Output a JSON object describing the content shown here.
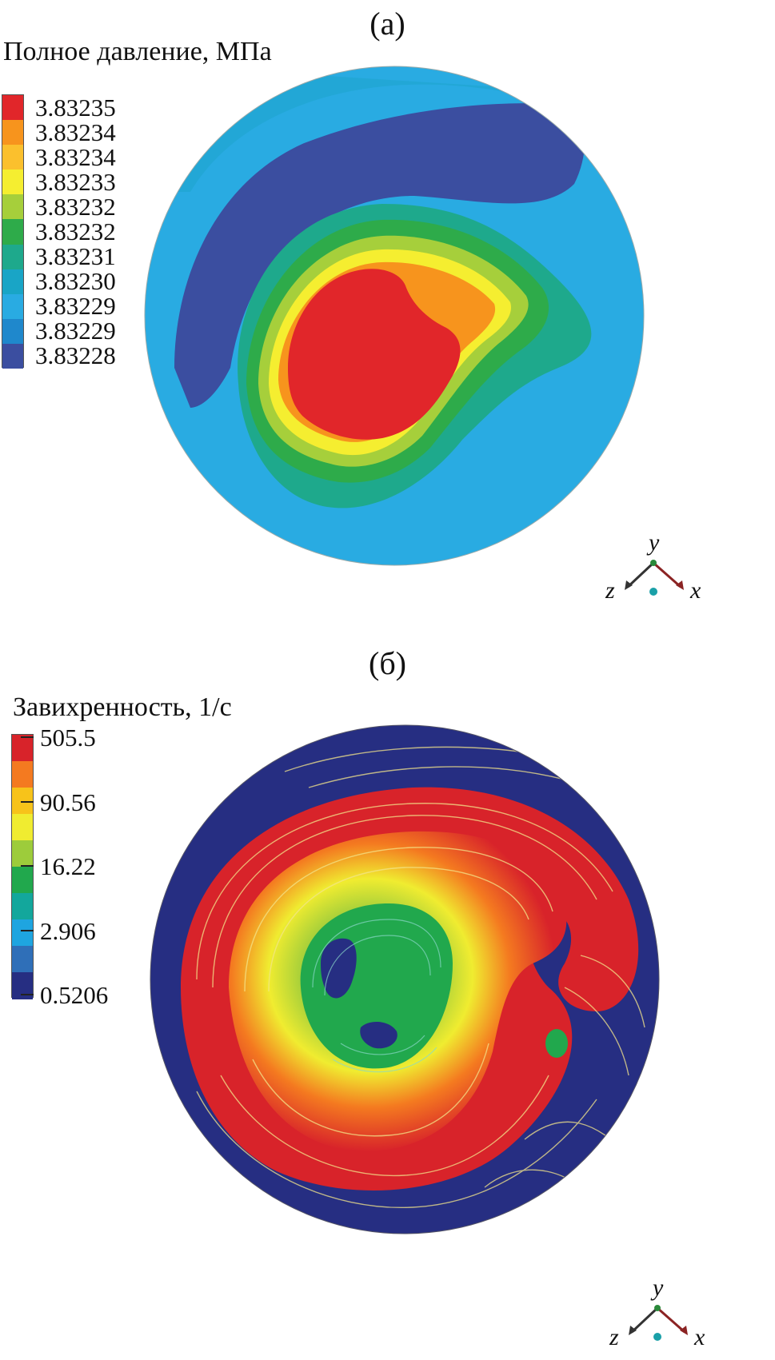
{
  "panel_a": {
    "label": "(а)",
    "legend_title": "Полное давление, МПа",
    "legend_ticks": [
      "3.83235",
      "3.83234",
      "3.83234",
      "3.83233",
      "3.83232",
      "3.83232",
      "3.83231",
      "3.83230",
      "3.83229",
      "3.83229",
      "3.83228"
    ],
    "legend_colors": [
      "#e1262a",
      "#f7941d",
      "#fbc02d",
      "#f5ee30",
      "#a6cf3b",
      "#2eab4a",
      "#1ea98c",
      "#19a5c6",
      "#29abe2",
      "#1f88cc",
      "#3b4ea0"
    ],
    "axes": {
      "up": "y",
      "left": "z",
      "right": "x"
    }
  },
  "panel_b": {
    "label": "(б)",
    "legend_title": "Завихренность, 1/с",
    "legend_ticks": [
      "505.5",
      "90.56",
      "16.22",
      "2.906",
      "0.5206"
    ],
    "legend_colors": [
      "#d8232a",
      "#f47a20",
      "#f7c31a",
      "#f0ec30",
      "#9dcc3b",
      "#21a84d",
      "#13a79c",
      "#1ea5e0",
      "#2f6fb8",
      "#262e82"
    ],
    "axes": {
      "up": "y",
      "left": "z",
      "right": "x"
    }
  }
}
